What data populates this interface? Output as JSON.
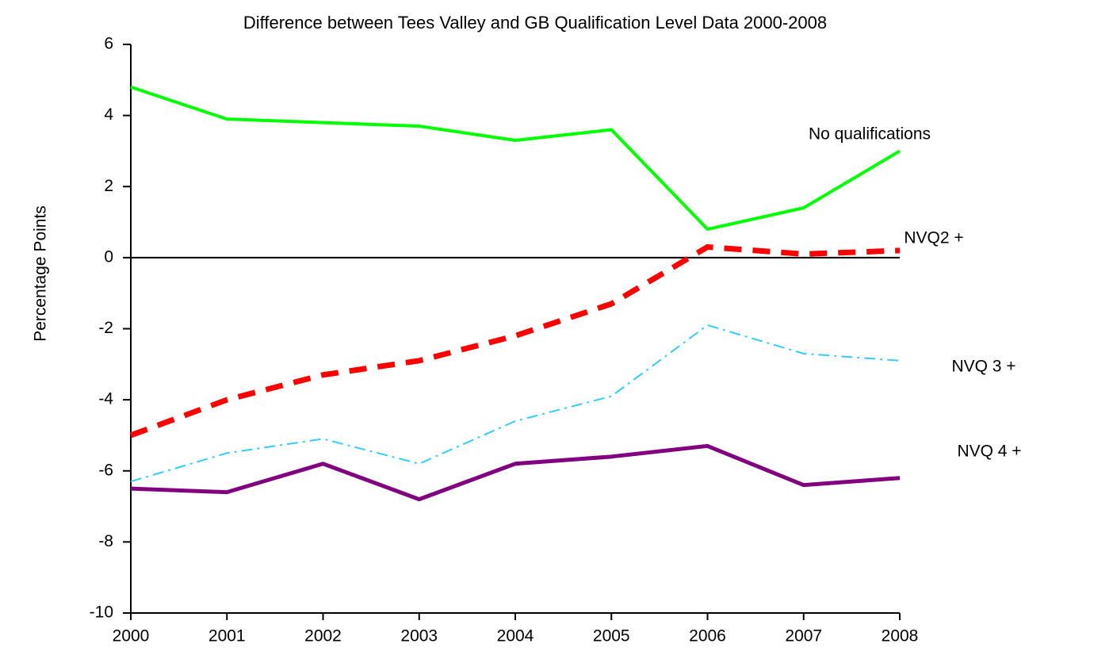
{
  "chart_data": {
    "type": "line",
    "title": "Difference between Tees Valley and GB Qualification Level Data 2000-2008",
    "y_label": "Percentage Points",
    "categories": [
      "2000",
      "2001",
      "2002",
      "2003",
      "2004",
      "2005",
      "2006",
      "2007",
      "2008"
    ],
    "series": [
      {
        "name": "No qualifications",
        "color": "#00ff00",
        "line_style": "solid",
        "values": [
          4.8,
          3.9,
          3.8,
          3.7,
          3.3,
          3.6,
          0.8,
          1.4,
          3.0
        ]
      },
      {
        "name": "NVQ2 +",
        "color": "#ff0000",
        "line_style": "dashed",
        "values": [
          -5.0,
          -4.0,
          -3.3,
          -2.9,
          -2.2,
          -1.3,
          0.3,
          0.1,
          0.2
        ]
      },
      {
        "name": "NVQ 3 +",
        "color": "#33ccff",
        "line_style": "dashdot",
        "values": [
          -6.3,
          -5.5,
          -5.1,
          -5.8,
          -4.6,
          -3.9,
          -1.9,
          -2.7,
          -2.9
        ]
      },
      {
        "name": "NVQ 4 +",
        "color": "#800080",
        "line_style": "thick",
        "values": [
          -6.5,
          -6.6,
          -5.8,
          -6.8,
          -5.8,
          -5.6,
          -5.3,
          -6.4,
          -6.2
        ]
      }
    ],
    "ylim": [
      -10,
      6
    ],
    "yticks": [
      -10,
      -8,
      -6,
      -4,
      -2,
      0,
      2,
      4,
      6
    ]
  }
}
